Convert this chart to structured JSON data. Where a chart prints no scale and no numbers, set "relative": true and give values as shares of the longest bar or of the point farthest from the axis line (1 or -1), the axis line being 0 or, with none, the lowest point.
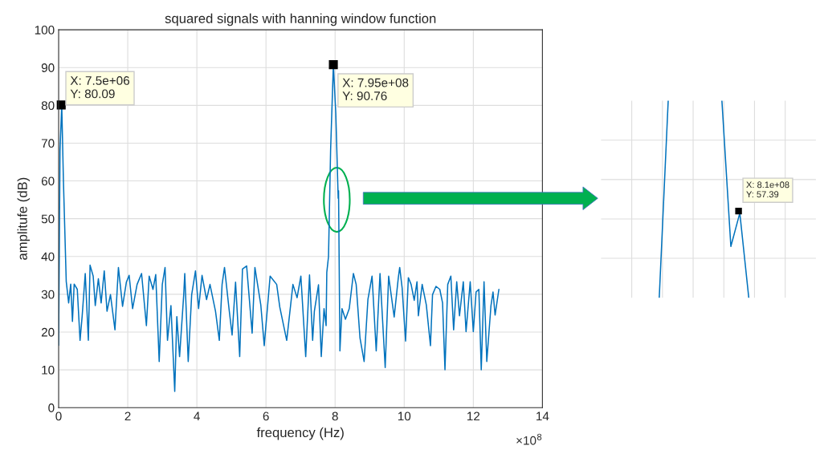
{
  "chart_data": [
    {
      "type": "line",
      "title": "squared signals with hanning window function",
      "xlabel": "frequency (Hz)",
      "ylabel": "amplitufe (dB)",
      "x": [
        0,
        0.04,
        0.09,
        0.14,
        0.22,
        0.29,
        0.35,
        0.4,
        0.45,
        0.54,
        0.62,
        0.68,
        0.77,
        0.86,
        0.91,
        1.0,
        1.06,
        1.15,
        1.23,
        1.32,
        1.4,
        1.5,
        1.63,
        1.73,
        1.85,
        1.96,
        2.04,
        2.14,
        2.27,
        2.4,
        2.54,
        2.62,
        2.73,
        2.81,
        2.91,
        3.0,
        3.08,
        3.15,
        3.25,
        3.36,
        3.42,
        3.5,
        3.62,
        3.65,
        3.75,
        3.85,
        3.96,
        4.05,
        4.15,
        4.28,
        4.38,
        4.54,
        4.65,
        4.73,
        4.8,
        4.93,
        5.02,
        5.12,
        5.24,
        5.32,
        5.44,
        5.6,
        5.68,
        5.85,
        5.95,
        6.12,
        6.31,
        6.4,
        6.6,
        6.78,
        6.9,
        7.01,
        7.15,
        7.26,
        7.35,
        7.4,
        7.52,
        7.6,
        7.68,
        7.74,
        7.76,
        7.81,
        7.87,
        7.95,
        8.02,
        8.09,
        8.1,
        8.14,
        8.2,
        8.3,
        8.41,
        8.53,
        8.61,
        8.72,
        8.84,
        8.95,
        9.07,
        9.19,
        9.3,
        9.45,
        9.55,
        9.71,
        9.83,
        9.87,
        9.94,
        10.04,
        10.12,
        10.2,
        10.29,
        10.37,
        10.41,
        10.52,
        10.64,
        10.76,
        10.82,
        10.92,
        11.03,
        11.11,
        11.18,
        11.26,
        11.35,
        11.43,
        11.52,
        11.6,
        11.71,
        11.79,
        11.91,
        12.0,
        12.08,
        12.16,
        12.23,
        12.31,
        12.39,
        12.51,
        12.57,
        12.63,
        12.74
      ],
      "series": [
        {
          "color": "#0072bd",
          "values": [
            16.5,
            68,
            80.09,
            59.6,
            33.4,
            27.7,
            32.7,
            22.8,
            32.7,
            31.3,
            17.8,
            24.1,
            35.5,
            17.8,
            37.7,
            34.8,
            27.0,
            34.1,
            27.7,
            36.2,
            25.5,
            29.9,
            20.6,
            37.1,
            26.8,
            33.2,
            35.0,
            26.2,
            32.6,
            35.5,
            21.7,
            34.8,
            31.3,
            35.2,
            12.2,
            32.6,
            37.1,
            17.8,
            27.0,
            4.3,
            24.1,
            13.5,
            29.9,
            35.5,
            12.2,
            29.9,
            36.2,
            26.2,
            35.0,
            28.6,
            32.6,
            25.5,
            17.8,
            32.6,
            37.1,
            26.2,
            19.2,
            33.2,
            13.5,
            36.7,
            37.5,
            19.7,
            37.1,
            27.2,
            16.4,
            34.8,
            32.6,
            26.6,
            17.8,
            32.6,
            29.1,
            34.8,
            13.5,
            35.1,
            17.8,
            25.5,
            32.5,
            13.5,
            26.2,
            21.7,
            35.8,
            40,
            68,
            90.76,
            78,
            55.4,
            57.39,
            15.0,
            26.2,
            23.4,
            26.2,
            35.5,
            32.6,
            18.5,
            12.2,
            28.6,
            34.8,
            15.0,
            35.5,
            10.6,
            34.8,
            24.0,
            34.4,
            37.1,
            31.7,
            17.6,
            34.4,
            32.6,
            28.4,
            33.3,
            24.3,
            32.6,
            27.2,
            16.4,
            29.9,
            32.1,
            31.3,
            27.7,
            10.0,
            32.6,
            34.8,
            20.6,
            33.3,
            24.3,
            33.3,
            20.1,
            33.3,
            20.1,
            30.6,
            31.3,
            10.0,
            33.3,
            12.2,
            26.9,
            30.6,
            24.5,
            31.3
          ]
        }
      ],
      "xlim": [
        0,
        14
      ],
      "xticks": [
        0,
        2,
        4,
        6,
        8,
        10,
        12,
        14
      ],
      "ylim": [
        0,
        100
      ],
      "yticks": [
        0,
        10,
        20,
        30,
        40,
        50,
        60,
        70,
        80,
        90,
        100
      ],
      "grid": true,
      "marker": "none",
      "line_style": "solid",
      "annotations": [
        {
          "text": "X: 7.5e+06\nY: 80.09",
          "x": 0.075,
          "y": 80.09
        },
        {
          "text": "X: 7.95e+08\nY: 90.76",
          "x": 7.95,
          "y": 90.76
        },
        "×10$^{8}$"
      ]
    },
    {
      "type": "line",
      "relative": true,
      "categories": [
        null,
        null,
        null,
        null,
        null,
        null,
        null,
        null,
        null,
        null,
        null,
        null,
        null,
        null,
        null,
        null,
        null,
        null,
        null,
        null,
        null,
        null,
        null,
        null
      ],
      "series": [
        {
          "color": "#0072bd",
          "values": [
            null,
            null,
            null,
            null,
            null,
            null,
            0,
            1,
            null,
            null,
            null,
            null,
            null,
            null,
            null,
            null,
            null,
            null,
            null,
            null,
            null,
            null,
            null,
            null
          ]
        },
        {
          "color": "#0072bd",
          "values": [
            null,
            null,
            null,
            null,
            null,
            null,
            null,
            null,
            null,
            null,
            null,
            null,
            null,
            1,
            0.26,
            0.43,
            0,
            null,
            null,
            null,
            null,
            null,
            null,
            null
          ]
        }
      ],
      "tick_labels": false,
      "grid": true,
      "marker": "none",
      "line_style": "solid",
      "annotations": [
        "X: 8.1e+08\nY: 57.39"
      ]
    }
  ]
}
